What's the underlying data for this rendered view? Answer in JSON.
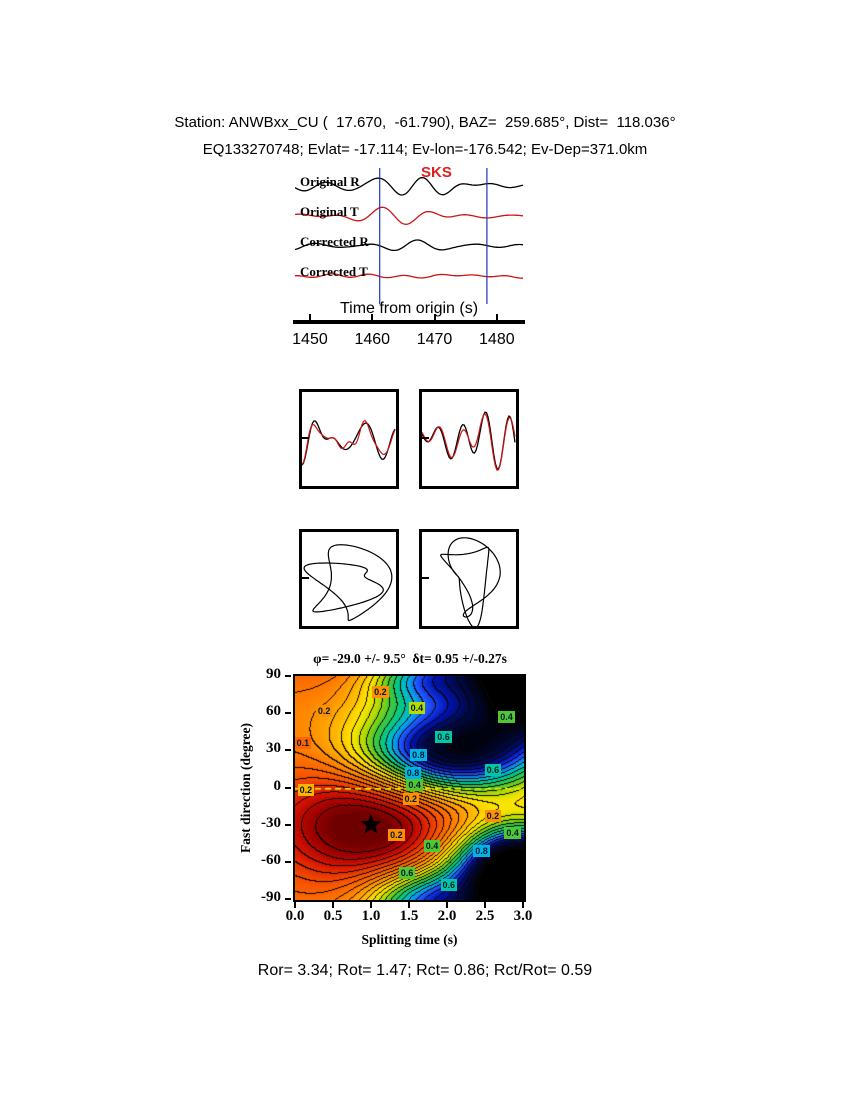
{
  "header": {
    "line1": "Station: ANWBxx_CU (  17.670,  -61.790), BAZ=  259.685°, Dist=  118.036°",
    "line2": "EQ133270748; Evlat= -17.114; Ev-lon=-176.542; Ev-Dep=371.0km"
  },
  "footer": {
    "stats": "Ror= 3.34; Rot= 1.47; Rct= 0.86; Rct/Rot= 0.59"
  },
  "chart_data": [
    {
      "type": "line",
      "name": "seismogram-panel",
      "xlabel": "Time from origin (s)",
      "xlim": [
        1447.6,
        1484.2
      ],
      "xticks": [
        1450,
        1460,
        1470,
        1480
      ],
      "xtick_labels": [
        "1450",
        "1460",
        "1470",
        "1480"
      ],
      "phase_label": "SKS",
      "phase_window_s": [
        1461.2,
        1478.4
      ],
      "window_color": "#2233bb",
      "traces": [
        {
          "label": "Original R",
          "color": "#000000",
          "amp": 12,
          "seed": 11
        },
        {
          "label": "Original T",
          "color": "#cc1414",
          "amp": 8,
          "seed": 22
        },
        {
          "label": "Corrected R",
          "color": "#000000",
          "amp": 12,
          "seed": 33
        },
        {
          "label": "Corrected T",
          "color": "#cc1414",
          "amp": 4,
          "seed": 44
        }
      ]
    },
    {
      "type": "line",
      "name": "waveform-overlay-radial",
      "series": [
        "original",
        "corrected"
      ],
      "colors": [
        "#000000",
        "#cc1414"
      ],
      "seeds": [
        101,
        102
      ]
    },
    {
      "type": "line",
      "name": "waveform-overlay-transverse",
      "series": [
        "original",
        "corrected"
      ],
      "colors": [
        "#000000",
        "#cc1414"
      ],
      "seeds": [
        201,
        202
      ]
    },
    {
      "type": "line",
      "name": "particle-motion-original",
      "color": "#000000"
    },
    {
      "type": "line",
      "name": "particle-motion-corrected",
      "color": "#000000"
    },
    {
      "type": "heatmap",
      "name": "splitting-energy-map",
      "title": "φ= -29.0 +/- 9.5°  δt= 0.95 +/-0.27s",
      "xlabel": "Splitting time (s)",
      "ylabel": "Fast direction (degree)",
      "xlim": [
        0,
        3
      ],
      "ylim": [
        -90,
        90
      ],
      "xticks": [
        0,
        0.5,
        1,
        1.5,
        2,
        2.5,
        3
      ],
      "xtick_labels": [
        "0.0",
        "0.5",
        "1.0",
        "1.5",
        "2.0",
        "2.5",
        "3.0"
      ],
      "yticks": [
        90,
        60,
        30,
        0,
        -30,
        -60,
        -90
      ],
      "ytick_labels": [
        "90",
        "60",
        "30",
        "0",
        "-30",
        "-60",
        "-90"
      ],
      "best_fit": {
        "phi_deg": -29.0,
        "phi_err_deg": 9.5,
        "dt_s": 0.95,
        "dt_err_s": 0.27
      },
      "marker": {
        "shape": "star",
        "x": 1.0,
        "y": -30,
        "color": "#000000"
      },
      "zero_line": {
        "y": 0,
        "color": "#e6f000"
      },
      "contour_interval": 0.05,
      "contour_levels_labeled": [
        0.1,
        0.2,
        0.4,
        0.6,
        0.8,
        1.0
      ],
      "contour_labels": [
        {
          "v": "0.2",
          "x": 0.38,
          "y": 62,
          "bg": "#ff9000"
        },
        {
          "v": "0.2",
          "x": 1.12,
          "y": 77,
          "bg": "#ff9000"
        },
        {
          "v": "0.4",
          "x": 1.6,
          "y": 64,
          "bg": "#b4dc00"
        },
        {
          "v": "0.4",
          "x": 2.78,
          "y": 57,
          "bg": "#50c832"
        },
        {
          "v": "0.6",
          "x": 1.95,
          "y": 41,
          "bg": "#00c8a0"
        },
        {
          "v": "0.8",
          "x": 1.62,
          "y": 26,
          "bg": "#00b4e6"
        },
        {
          "v": "0.6",
          "x": 2.6,
          "y": 14,
          "bg": "#00c8a0"
        },
        {
          "v": "0.8",
          "x": 1.55,
          "y": 12,
          "bg": "#00b4e6"
        },
        {
          "v": "0.4",
          "x": 1.57,
          "y": 2,
          "bg": "#50c832"
        },
        {
          "v": "0.2",
          "x": 1.52,
          "y": -9,
          "bg": "#ff9000"
        },
        {
          "v": "0.1",
          "x": 0.1,
          "y": 36,
          "bg": "#ff6400"
        },
        {
          "v": "0.2",
          "x": 0.14,
          "y": -2,
          "bg": "#ffb400"
        },
        {
          "v": "0.2",
          "x": 1.33,
          "y": -38,
          "bg": "#ff9000"
        },
        {
          "v": "0.4",
          "x": 1.8,
          "y": -47,
          "bg": "#50c832"
        },
        {
          "v": "0.6",
          "x": 1.47,
          "y": -69,
          "bg": "#50c832"
        },
        {
          "v": "0.6",
          "x": 2.02,
          "y": -79,
          "bg": "#00c8a0"
        },
        {
          "v": "0.8",
          "x": 2.45,
          "y": -51,
          "bg": "#00b4e6"
        },
        {
          "v": "0.4",
          "x": 2.86,
          "y": -37,
          "bg": "#50c832"
        },
        {
          "v": "0.2",
          "x": 2.6,
          "y": -23,
          "bg": "#ff9000"
        }
      ],
      "surface_model": {
        "base": 0.36,
        "period_y": 180,
        "clamp": [
          0,
          1.25
        ],
        "gaussians": [
          {
            "x": 0.95,
            "y": -29,
            "sx": 0.9,
            "sy": 34,
            "a": -0.42
          },
          {
            "x": 2.05,
            "y": 30,
            "sx": 0.85,
            "sy": 26,
            "a": 0.85
          },
          {
            "x": 2.9,
            "y": -60,
            "sx": 0.6,
            "sy": 22,
            "a": 0.9
          },
          {
            "x": 3.15,
            "y": 78,
            "sx": 0.6,
            "sy": 26,
            "a": 0.9
          },
          {
            "x": 1.7,
            "y": -90,
            "sx": 0.55,
            "sy": 18,
            "a": 0.5
          }
        ]
      },
      "colormap": [
        {
          "v": 0.0,
          "c": "#6e0000"
        },
        {
          "v": 0.07,
          "c": "#a00000"
        },
        {
          "v": 0.15,
          "c": "#d81500"
        },
        {
          "v": 0.25,
          "c": "#f44d00"
        },
        {
          "v": 0.36,
          "c": "#ff7b00"
        },
        {
          "v": 0.46,
          "c": "#ffb000"
        },
        {
          "v": 0.55,
          "c": "#ffe600"
        },
        {
          "v": 0.62,
          "c": "#b8dc00"
        },
        {
          "v": 0.7,
          "c": "#46c832"
        },
        {
          "v": 0.78,
          "c": "#00c88c"
        },
        {
          "v": 0.85,
          "c": "#00b4e6"
        },
        {
          "v": 0.92,
          "c": "#1e50ff"
        },
        {
          "v": 1.0,
          "c": "#0014b4"
        },
        {
          "v": 1.08,
          "c": "#000a50"
        },
        {
          "v": 1.25,
          "c": "#000000"
        }
      ]
    }
  ]
}
